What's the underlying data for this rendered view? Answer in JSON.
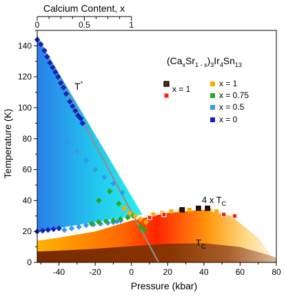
{
  "chart_data": {
    "type": "scatter",
    "xlabel": "Pressure (kbar)",
    "ylabel": "Temperature (K)",
    "top_xlabel": "Calcium Content, x",
    "xlim": [
      -52,
      80
    ],
    "ylim": [
      0,
      150
    ],
    "top_axis_range": [
      0,
      1
    ],
    "top_axis_pressure_span": [
      -52,
      0
    ],
    "x_ticks": [
      -40,
      -20,
      0,
      20,
      40,
      60,
      80
    ],
    "y_ticks": [
      0,
      20,
      40,
      60,
      80,
      100,
      120,
      140
    ],
    "top_ticks": [
      0,
      0.5,
      1
    ],
    "x_tick_labels": [
      "-40",
      "-20",
      "0",
      "20",
      "40",
      "60",
      "80"
    ],
    "y_tick_labels": [
      "0",
      "20",
      "40",
      "60",
      "80",
      "100",
      "120",
      "140"
    ],
    "top_tick_labels": [
      "0",
      "0.5",
      "1"
    ],
    "formula": {
      "parts": [
        "(Ca",
        "x",
        "Sr",
        "1 - x",
        ")",
        "3",
        "Ir",
        "4",
        "Sn",
        "13"
      ]
    },
    "annotations": {
      "t_star": "T",
      "t_star_sup": "*",
      "four_tc": "4 x T",
      "four_tc_sub": "C",
      "tc": "T",
      "tc_sub": "C"
    },
    "legend": [
      {
        "label": "x = 1",
        "color": "#000000",
        "style": "framed-dark"
      },
      {
        "label": "x = 1",
        "color": "#ff2200",
        "style": "framed-red"
      },
      {
        "label": "x = 1",
        "color": "#ffaa00",
        "style": "square"
      },
      {
        "label": "x = 0.75",
        "color": "#22aa22",
        "style": "square"
      },
      {
        "label": "x = 0.5",
        "color": "#3399ee",
        "style": "square"
      },
      {
        "label": "x = 0",
        "color": "#1122bb",
        "style": "square"
      }
    ],
    "tstar_line": [
      [
        -52,
        146
      ],
      [
        15,
        0
      ]
    ],
    "tstar_boundary": [
      [
        -52,
        146
      ],
      [
        6,
        31
      ]
    ],
    "cdw_lower_boundary": [
      [
        -52,
        20
      ],
      [
        6,
        31
      ]
    ],
    "sc_dome": [
      [
        -52,
        14
      ],
      [
        -40,
        16
      ],
      [
        -20,
        20
      ],
      [
        0,
        27
      ],
      [
        20,
        32
      ],
      [
        40,
        34
      ],
      [
        55,
        30
      ],
      [
        70,
        16
      ],
      [
        78,
        3
      ]
    ],
    "tc_curve": [
      [
        -52,
        7
      ],
      [
        -40,
        7.6
      ],
      [
        -20,
        8.8
      ],
      [
        0,
        10.5
      ],
      [
        20,
        12
      ],
      [
        40,
        12.4
      ],
      [
        60,
        10
      ],
      [
        75,
        5
      ],
      [
        80,
        3
      ]
    ],
    "series": [
      {
        "name": "x = 0",
        "color": "#1122bb",
        "marker": "diamond",
        "x": [
          -52,
          -50,
          -48,
          -46.5,
          -45,
          -43.5,
          -42,
          -40.5,
          -39,
          -37.5,
          -36,
          -34,
          -32.5,
          -31,
          -29.5,
          -28,
          -27,
          -52,
          -49,
          -46,
          -43,
          -40
        ],
        "y": [
          144,
          141,
          137,
          133,
          129,
          126,
          123,
          120,
          116,
          113,
          109,
          104,
          101,
          98,
          95,
          93,
          90,
          20,
          20.5,
          21,
          21.5,
          22
        ]
      },
      {
        "name": "x = 0.5",
        "color": "#3399ee",
        "marker": "diamond",
        "x": [
          -37,
          -33,
          -29,
          -25,
          -21,
          -17,
          -13,
          -10,
          -8,
          -6,
          -35,
          -30,
          -25,
          -20,
          -15,
          -10,
          -5
        ],
        "y": [
          21,
          22,
          23,
          24,
          24.5,
          25,
          25.5,
          26,
          26.5,
          27,
          78,
          72,
          66,
          60,
          55,
          51,
          45
        ]
      },
      {
        "name": "x = 0.75",
        "color": "#22aa22",
        "marker": "diamond",
        "x": [
          -22,
          -18,
          -14,
          -10,
          -6,
          -2,
          1,
          -18,
          -12,
          -7,
          5,
          7
        ],
        "y": [
          25,
          26,
          26.5,
          27,
          28,
          29,
          30,
          40,
          46,
          38,
          23,
          21
        ]
      },
      {
        "name": "x = 1 (T*)",
        "color": "#ffaa00",
        "marker": "diamond",
        "x": [
          -4,
          -1,
          2,
          5,
          8
        ],
        "y": [
          35,
          32,
          30,
          28,
          26
        ]
      },
      {
        "name": "x = 1 (4 x Tc)",
        "color": "#ffaa00",
        "marker": "square",
        "x": [
          12,
          17,
          22,
          27,
          32,
          37,
          43,
          47
        ],
        "y": [
          31,
          32,
          33,
          33.5,
          34,
          34,
          34,
          33
        ]
      },
      {
        "name": "x = 1 (dark)",
        "color": "#331100",
        "marker": "framed",
        "x": [
          28,
          37,
          42
        ],
        "y": [
          34,
          35,
          35
        ]
      },
      {
        "name": "x = 1 (red)",
        "color": "#ff2200",
        "marker": "framed",
        "x": [
          10,
          18,
          51,
          57
        ],
        "y": [
          29,
          31,
          31,
          30
        ]
      }
    ]
  }
}
